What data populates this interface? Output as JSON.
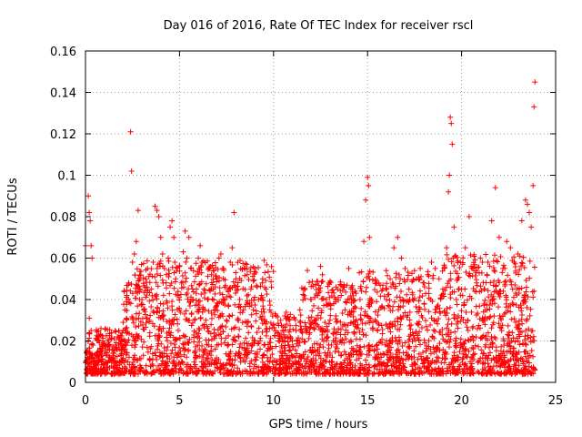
{
  "chart_data": {
    "type": "scatter",
    "title": "Day 016 of 2016, Rate Of TEC Index for receiver rscl",
    "xlabel": "GPS time / hours",
    "ylabel": "ROTI / TECUs",
    "xlim": [
      0,
      25
    ],
    "ylim": [
      0,
      0.16
    ],
    "x_ticks": [
      0,
      5,
      10,
      15,
      20,
      25
    ],
    "x_tick_labels": [
      "0",
      "5",
      "10",
      "15",
      "20",
      "25"
    ],
    "y_ticks": [
      0,
      0.02,
      0.04,
      0.06,
      0.08,
      0.1,
      0.12,
      0.14,
      0.16
    ],
    "y_tick_labels": [
      "0",
      "0.02",
      "0.04",
      "0.06",
      "0.08",
      "0.1",
      "0.12",
      "0.14",
      "0.16"
    ],
    "grid": true,
    "marker": "+",
    "color": "#ff0000",
    "series": [
      {
        "name": "ROTI",
        "points": [
          [
            0.0,
            0.066
          ],
          [
            0.1,
            0.012
          ],
          [
            0.15,
            0.09
          ],
          [
            0.2,
            0.082
          ],
          [
            0.25,
            0.078
          ],
          [
            0.3,
            0.066
          ],
          [
            0.35,
            0.06
          ],
          [
            0.2,
            0.031
          ],
          [
            0.3,
            0.025
          ],
          [
            0.4,
            0.018
          ],
          [
            0.5,
            0.01
          ],
          [
            0.6,
            0.008
          ],
          [
            0.7,
            0.012
          ],
          [
            0.8,
            0.015
          ],
          [
            0.9,
            0.011
          ],
          [
            1.0,
            0.009
          ],
          [
            1.1,
            0.013
          ],
          [
            1.2,
            0.016
          ],
          [
            1.3,
            0.012
          ],
          [
            1.4,
            0.01
          ],
          [
            1.5,
            0.014
          ],
          [
            1.6,
            0.018
          ],
          [
            1.7,
            0.022
          ],
          [
            1.8,
            0.016
          ],
          [
            1.9,
            0.02
          ],
          [
            2.0,
            0.025
          ],
          [
            2.1,
            0.035
          ],
          [
            2.2,
            0.042
          ],
          [
            2.3,
            0.048
          ],
          [
            2.4,
            0.121
          ],
          [
            2.45,
            0.102
          ],
          [
            2.5,
            0.058
          ],
          [
            2.6,
            0.062
          ],
          [
            2.7,
            0.068
          ],
          [
            2.8,
            0.083
          ],
          [
            2.9,
            0.045
          ],
          [
            3.0,
            0.04
          ],
          [
            3.1,
            0.035
          ],
          [
            3.2,
            0.05
          ],
          [
            3.3,
            0.055
          ],
          [
            3.4,
            0.03
          ],
          [
            3.5,
            0.045
          ],
          [
            3.6,
            0.058
          ],
          [
            3.7,
            0.085
          ],
          [
            3.8,
            0.083
          ],
          [
            3.9,
            0.08
          ],
          [
            4.0,
            0.07
          ],
          [
            4.1,
            0.062
          ],
          [
            4.2,
            0.055
          ],
          [
            4.3,
            0.052
          ],
          [
            4.4,
            0.06
          ],
          [
            4.5,
            0.075
          ],
          [
            4.6,
            0.078
          ],
          [
            4.7,
            0.07
          ],
          [
            4.8,
            0.05
          ],
          [
            4.9,
            0.042
          ],
          [
            5.0,
            0.035
          ],
          [
            5.1,
            0.048
          ],
          [
            5.2,
            0.063
          ],
          [
            5.3,
            0.073
          ],
          [
            5.4,
            0.06
          ],
          [
            5.5,
            0.07
          ],
          [
            5.6,
            0.055
          ],
          [
            5.7,
            0.04
          ],
          [
            5.8,
            0.03
          ],
          [
            5.9,
            0.045
          ],
          [
            6.0,
            0.06
          ],
          [
            6.1,
            0.066
          ],
          [
            6.2,
            0.058
          ],
          [
            6.3,
            0.045
          ],
          [
            6.4,
            0.03
          ],
          [
            6.5,
            0.04
          ],
          [
            6.6,
            0.055
          ],
          [
            6.7,
            0.052
          ],
          [
            6.8,
            0.045
          ],
          [
            6.9,
            0.035
          ],
          [
            7.0,
            0.05
          ],
          [
            7.1,
            0.06
          ],
          [
            7.2,
            0.062
          ],
          [
            7.3,
            0.055
          ],
          [
            7.4,
            0.04
          ],
          [
            7.5,
            0.03
          ],
          [
            7.6,
            0.045
          ],
          [
            7.7,
            0.058
          ],
          [
            7.8,
            0.065
          ],
          [
            7.9,
            0.082
          ],
          [
            8.0,
            0.05
          ],
          [
            8.2,
            0.04
          ],
          [
            8.4,
            0.035
          ],
          [
            8.6,
            0.052
          ],
          [
            8.8,
            0.045
          ],
          [
            9.0,
            0.055
          ],
          [
            9.2,
            0.04
          ],
          [
            9.4,
            0.048
          ],
          [
            9.6,
            0.045
          ],
          [
            9.8,
            0.035
          ],
          [
            10.0,
            0.028
          ],
          [
            10.2,
            0.024
          ],
          [
            10.4,
            0.022
          ],
          [
            10.6,
            0.02
          ],
          [
            10.8,
            0.018
          ],
          [
            11.0,
            0.02
          ],
          [
            11.2,
            0.025
          ],
          [
            11.4,
            0.035
          ],
          [
            11.6,
            0.045
          ],
          [
            11.8,
            0.054
          ],
          [
            12.0,
            0.04
          ],
          [
            12.2,
            0.03
          ],
          [
            12.4,
            0.045
          ],
          [
            12.5,
            0.056
          ],
          [
            12.6,
            0.052
          ],
          [
            12.8,
            0.04
          ],
          [
            13.0,
            0.03
          ],
          [
            13.2,
            0.038
          ],
          [
            13.4,
            0.045
          ],
          [
            13.6,
            0.042
          ],
          [
            13.8,
            0.035
          ],
          [
            14.0,
            0.055
          ],
          [
            14.2,
            0.045
          ],
          [
            14.4,
            0.03
          ],
          [
            14.6,
            0.04
          ],
          [
            14.8,
            0.068
          ],
          [
            14.9,
            0.088
          ],
          [
            15.0,
            0.099
          ],
          [
            15.05,
            0.095
          ],
          [
            15.1,
            0.07
          ],
          [
            15.2,
            0.04
          ],
          [
            15.4,
            0.03
          ],
          [
            15.6,
            0.035
          ],
          [
            15.8,
            0.045
          ],
          [
            16.0,
            0.04
          ],
          [
            16.2,
            0.05
          ],
          [
            16.4,
            0.065
          ],
          [
            16.6,
            0.07
          ],
          [
            16.8,
            0.06
          ],
          [
            17.0,
            0.055
          ],
          [
            17.2,
            0.045
          ],
          [
            17.4,
            0.04
          ],
          [
            17.6,
            0.05
          ],
          [
            17.8,
            0.055
          ],
          [
            18.0,
            0.048
          ],
          [
            18.2,
            0.052
          ],
          [
            18.4,
            0.058
          ],
          [
            18.6,
            0.055
          ],
          [
            18.8,
            0.05
          ],
          [
            19.0,
            0.045
          ],
          [
            19.2,
            0.065
          ],
          [
            19.3,
            0.092
          ],
          [
            19.35,
            0.1
          ],
          [
            19.4,
            0.128
          ],
          [
            19.45,
            0.125
          ],
          [
            19.5,
            0.115
          ],
          [
            19.55,
            0.06
          ],
          [
            19.6,
            0.075
          ],
          [
            19.8,
            0.05
          ],
          [
            20.0,
            0.045
          ],
          [
            20.2,
            0.065
          ],
          [
            20.4,
            0.08
          ],
          [
            20.6,
            0.055
          ],
          [
            20.8,
            0.048
          ],
          [
            21.0,
            0.06
          ],
          [
            21.2,
            0.045
          ],
          [
            21.4,
            0.058
          ],
          [
            21.6,
            0.078
          ],
          [
            21.8,
            0.094
          ],
          [
            22.0,
            0.07
          ],
          [
            22.2,
            0.055
          ],
          [
            22.4,
            0.068
          ],
          [
            22.6,
            0.065
          ],
          [
            22.8,
            0.058
          ],
          [
            23.0,
            0.062
          ],
          [
            23.2,
            0.078
          ],
          [
            23.4,
            0.088
          ],
          [
            23.5,
            0.086
          ],
          [
            23.6,
            0.082
          ],
          [
            23.7,
            0.075
          ],
          [
            23.8,
            0.095
          ],
          [
            23.85,
            0.133
          ],
          [
            23.9,
            0.145
          ]
        ]
      }
    ]
  }
}
